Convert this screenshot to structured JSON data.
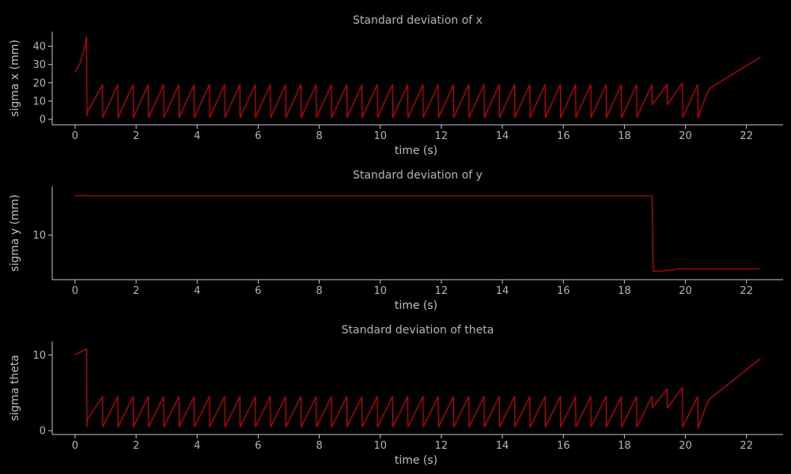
{
  "chart_data": [
    {
      "type": "line",
      "title": "Standard deviation of x",
      "xlabel": "time (s)",
      "ylabel": "sigma x (mm)",
      "xlim": [
        -0.75,
        23.2
      ],
      "ylim": [
        -3,
        48
      ],
      "xticks": [
        0,
        2,
        4,
        6,
        8,
        10,
        12,
        14,
        16,
        18,
        20,
        22
      ],
      "yticks": [
        0,
        10,
        20,
        30,
        40
      ],
      "grid": false,
      "line_color": "#cc0000",
      "series": [
        {
          "x": [
            0,
            0.15,
            0.28,
            0.38,
            0.39,
            0.4,
            0.9,
            0.91,
            1.4,
            1.41,
            1.9,
            1.91,
            2.4,
            2.41,
            2.9,
            2.91,
            3.4,
            3.41,
            3.9,
            3.91,
            4.4,
            4.41,
            4.9,
            4.91,
            5.4,
            5.41,
            5.9,
            5.91,
            6.4,
            6.41,
            6.9,
            6.91,
            7.4,
            7.41,
            7.9,
            7.91,
            8.4,
            8.41,
            8.9,
            8.91,
            9.4,
            9.41,
            9.9,
            9.91,
            10.4,
            10.41,
            10.9,
            10.91,
            11.4,
            11.41,
            11.9,
            11.91,
            12.4,
            12.41,
            12.9,
            12.91,
            13.4,
            13.41,
            13.9,
            13.91,
            14.4,
            14.41,
            14.9,
            14.91,
            15.4,
            15.41,
            15.9,
            15.91,
            16.4,
            16.41,
            16.9,
            16.91,
            17.4,
            17.41,
            17.9,
            17.91,
            18.4,
            18.41,
            18.9,
            18.91,
            19.4,
            19.41,
            19.9,
            19.91,
            20.4,
            20.41,
            20.7,
            20.8,
            22.45
          ],
          "y": [
            26,
            30,
            37,
            45,
            2,
            4,
            19,
            1,
            19,
            1,
            19,
            1,
            19,
            1,
            19,
            1,
            19,
            1,
            19,
            1,
            19,
            1,
            19,
            1,
            19,
            1,
            19,
            1,
            19,
            1,
            19,
            1,
            19,
            1,
            19,
            1,
            19,
            1,
            19,
            1,
            19,
            1,
            19,
            1,
            19,
            1,
            19,
            1,
            19,
            1,
            19,
            1,
            19,
            1,
            19,
            1,
            19,
            1,
            19,
            1,
            19,
            1,
            19,
            1,
            19,
            1,
            19,
            1,
            19,
            1,
            19,
            1,
            19,
            1,
            19,
            1,
            19,
            1,
            19,
            8,
            19,
            8,
            20,
            1,
            19,
            1,
            14,
            17,
            34
          ]
        }
      ]
    },
    {
      "type": "line",
      "title": "Standard deviation of y",
      "xlabel": "time (s)",
      "ylabel": "sigma y (mm)",
      "xlim": [
        -0.75,
        23.2
      ],
      "ylim": [
        5.7,
        14.7
      ],
      "xticks": [
        0,
        2,
        4,
        6,
        8,
        10,
        12,
        14,
        16,
        18,
        20,
        22
      ],
      "yticks": [
        10
      ],
      "grid": false,
      "line_color": "#cc0000",
      "series": [
        {
          "x": [
            0,
            0.3,
            0.35,
            0.4,
            18.9,
            18.95,
            19.3,
            19.7,
            19.8,
            19.9,
            22.45
          ],
          "y": [
            13.8,
            13.8,
            13.85,
            13.8,
            13.8,
            6.5,
            6.55,
            6.7,
            6.8,
            6.75,
            6.75
          ]
        }
      ]
    },
    {
      "type": "line",
      "title": "Standard deviation of theta",
      "xlabel": "time (s)",
      "ylabel": "sigma theta",
      "xlim": [
        -0.75,
        23.2
      ],
      "ylim": [
        -0.5,
        11.8
      ],
      "xticks": [
        0,
        2,
        4,
        6,
        8,
        10,
        12,
        14,
        16,
        18,
        20,
        22
      ],
      "yticks": [
        0,
        10
      ],
      "grid": false,
      "line_color": "#cc0000",
      "series": [
        {
          "x": [
            0,
            0.38,
            0.39,
            0.4,
            0.9,
            0.91,
            1.4,
            1.41,
            1.9,
            1.91,
            2.4,
            2.41,
            2.9,
            2.91,
            3.4,
            3.41,
            3.9,
            3.91,
            4.4,
            4.41,
            4.9,
            4.91,
            5.4,
            5.41,
            5.9,
            5.91,
            6.4,
            6.41,
            6.9,
            6.91,
            7.4,
            7.41,
            7.9,
            7.91,
            8.4,
            8.41,
            8.9,
            8.91,
            9.4,
            9.41,
            9.9,
            9.91,
            10.4,
            10.41,
            10.9,
            10.91,
            11.4,
            11.41,
            11.9,
            11.91,
            12.4,
            12.41,
            12.9,
            12.91,
            13.4,
            13.41,
            13.9,
            13.91,
            14.4,
            14.41,
            14.9,
            14.91,
            15.4,
            15.41,
            15.9,
            15.91,
            16.4,
            16.41,
            16.9,
            16.91,
            17.4,
            17.41,
            17.9,
            17.91,
            18.4,
            18.41,
            18.9,
            18.91,
            19.4,
            19.41,
            19.9,
            19.91,
            20.4,
            20.41,
            20.7,
            20.8,
            22.45
          ],
          "y": [
            10,
            10.8,
            0.5,
            1.5,
            4.5,
            0.5,
            4.5,
            0.5,
            4.5,
            0.5,
            4.5,
            0.5,
            4.5,
            0.5,
            4.5,
            0.5,
            4.5,
            0.5,
            4.5,
            0.5,
            4.5,
            0.5,
            4.5,
            0.5,
            4.5,
            0.5,
            4.5,
            0.5,
            4.5,
            0.5,
            4.5,
            0.5,
            4.5,
            0.5,
            4.5,
            0.5,
            4.5,
            0.5,
            4.5,
            0.5,
            4.5,
            0.5,
            4.5,
            0.5,
            4.5,
            0.5,
            4.5,
            0.5,
            4.5,
            0.5,
            4.5,
            0.5,
            4.5,
            0.5,
            4.5,
            0.5,
            4.5,
            0.5,
            4.5,
            0.5,
            4.5,
            0.5,
            4.5,
            0.5,
            4.5,
            0.5,
            4.5,
            0.5,
            4.5,
            0.5,
            4.5,
            0.5,
            4.5,
            0.5,
            4.5,
            0.5,
            4.5,
            3,
            5.5,
            3,
            5.7,
            0.5,
            4.5,
            0.3,
            3.5,
            4.2,
            9.5
          ]
        }
      ]
    }
  ]
}
